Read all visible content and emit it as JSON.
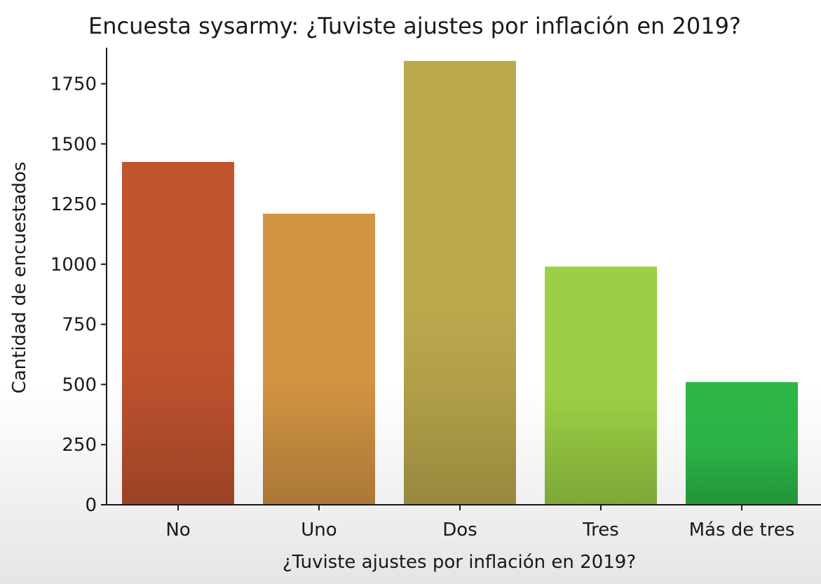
{
  "chart_data": {
    "type": "bar",
    "title": "Encuesta sysarmy: ¿Tuviste ajustes por inflación en 2019?",
    "xlabel": "¿Tuviste ajustes por inflación en 2019?",
    "ylabel": "Cantidad de encuestados",
    "categories": [
      "No",
      "Uno",
      "Dos",
      "Tres",
      "Más de tres"
    ],
    "values": [
      1425,
      1210,
      1845,
      990,
      510
    ],
    "ylim": [
      0,
      1900
    ],
    "yticks": [
      0,
      250,
      500,
      750,
      1000,
      1250,
      1500,
      1750
    ],
    "ytick_labels": [
      "0",
      "250",
      "500",
      "750",
      "1000",
      "1250",
      "1500",
      "1750"
    ],
    "colors": [
      "#c1532f",
      "#d39543",
      "#bba94d",
      "#9ccf45",
      "#2db748"
    ],
    "grid": false,
    "legend": "none"
  }
}
